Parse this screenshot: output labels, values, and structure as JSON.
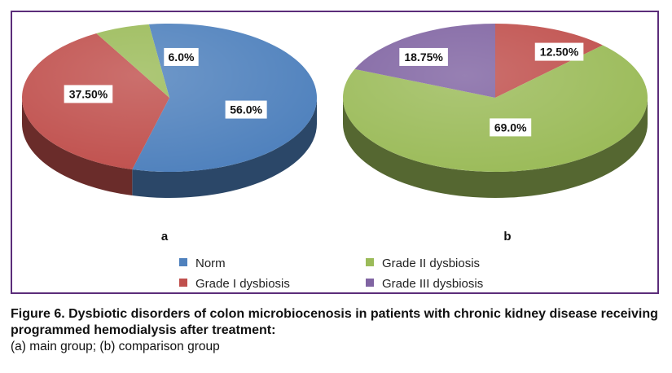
{
  "chart_data": [
    {
      "type": "pie",
      "panel_label": "a",
      "slices": [
        {
          "label": "Norm",
          "value": 56.0,
          "value_label": "56.0%",
          "color": "#4f81bd"
        },
        {
          "label": "Grade I dysbiosis",
          "value": 37.5,
          "value_label": "37.50%",
          "color": "#c0504d"
        },
        {
          "label": "Grade II dysbiosis",
          "value": 6.0,
          "value_label": "6.0%",
          "color": "#9bbb59"
        }
      ]
    },
    {
      "type": "pie",
      "panel_label": "b",
      "slices": [
        {
          "label": "Grade I dysbiosis",
          "value": 12.5,
          "value_label": "12.50%",
          "color": "#c0504d"
        },
        {
          "label": "Grade II dysbiosis",
          "value": 69.0,
          "value_label": "69.0%",
          "color": "#9bbb59"
        },
        {
          "label": "Grade III dysbiosis",
          "value": 18.75,
          "value_label": "18.75%",
          "color": "#8064a2"
        }
      ]
    }
  ],
  "legend": [
    {
      "label": "Norm",
      "color": "#4f81bd"
    },
    {
      "label": "Grade II dysbiosis",
      "color": "#9bbb59"
    },
    {
      "label": "Grade I dysbiosis",
      "color": "#c0504d"
    },
    {
      "label": "Grade III dysbiosis",
      "color": "#8064a2"
    }
  ],
  "caption": {
    "title": "Figure 6. Dysbiotic disorders of colon microbiocenosis in patients with chronic kidney disease receiving programmed hemodialysis after treatment:",
    "subtitle": "(a) main group; (b) comparison group"
  },
  "frame_color": "#5b2d7a"
}
